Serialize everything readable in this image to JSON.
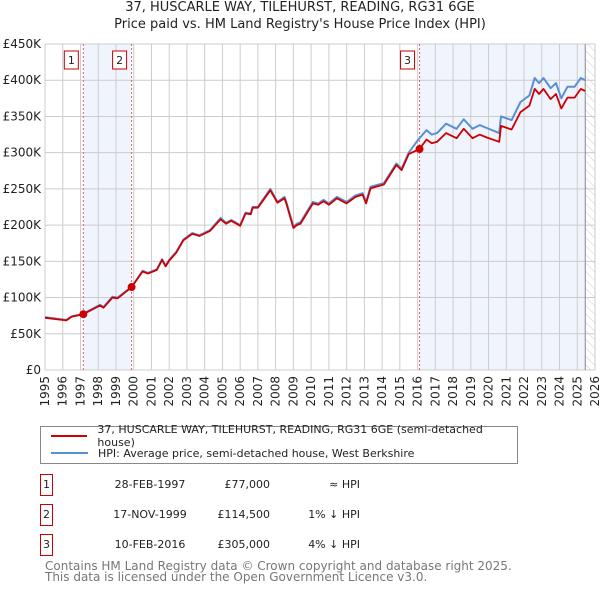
{
  "chart_data": {
    "type": "line",
    "title": "37, HUSCARLE WAY, TILEHURST, READING, RG31 6GE",
    "subtitle": "Price paid vs. HM Land Registry's House Price Index (HPI)",
    "xlim": [
      1995,
      2026
    ],
    "ylim": [
      0,
      450000
    ],
    "y_ticks": [
      0,
      50000,
      100000,
      150000,
      200000,
      250000,
      300000,
      350000,
      400000,
      450000
    ],
    "y_tick_labels": [
      "£0",
      "£50K",
      "£100K",
      "£150K",
      "£200K",
      "£250K",
      "£300K",
      "£350K",
      "£400K",
      "£450K"
    ],
    "x_ticks": [
      "1995",
      "1996",
      "1997",
      "1998",
      "1999",
      "2000",
      "2001",
      "2002",
      "2003",
      "2004",
      "2005",
      "2006",
      "2007",
      "2008",
      "2009",
      "2010",
      "2011",
      "2012",
      "2013",
      "2014",
      "2015",
      "2016",
      "2017",
      "2018",
      "2019",
      "2020",
      "2021",
      "2022",
      "2023",
      "2024",
      "2025",
      "2026"
    ],
    "grid": true,
    "legend_position": "below",
    "series": [
      {
        "name": "HPI: Average price, semi-detached house, West Berkshire",
        "color": "#5b8fd4",
        "x": [
          1995.0,
          1996.2,
          1996.5,
          1997.1,
          1998.1,
          1998.3,
          1998.8,
          1999.1,
          1999.9,
          2000.5,
          2000.8,
          2001.3,
          2001.6,
          2001.8,
          2002.0,
          2002.4,
          2002.8,
          2003.3,
          2003.7,
          2004.3,
          2004.9,
          2005.2,
          2005.5,
          2006.0,
          2006.3,
          2006.6,
          2006.7,
          2007.0,
          2007.7,
          2008.1,
          2008.5,
          2008.6,
          2009.0,
          2009.2,
          2009.4,
          2010.1,
          2010.4,
          2010.7,
          2011.0,
          2011.45,
          2012.0,
          2012.5,
          2012.9,
          2013.1,
          2013.35,
          2014.1,
          2014.8,
          2015.1,
          2015.5,
          2016.0,
          2016.5,
          2016.8,
          2017.1,
          2017.6,
          2018.2,
          2018.6,
          2019.1,
          2019.5,
          2019.9,
          2020.6,
          2020.7,
          2021.3,
          2021.8,
          2022.3,
          2022.6,
          2022.85,
          2023.1,
          2023.5,
          2023.8,
          2024.1,
          2024.45,
          2024.85,
          2025.2,
          2025.45
        ],
        "y": [
          73000,
          69000,
          74000,
          77000,
          90000,
          87000,
          101000,
          100000,
          115000,
          137000,
          134000,
          139000,
          153000,
          144000,
          152000,
          163000,
          180000,
          189000,
          186000,
          193000,
          210000,
          203000,
          207000,
          200000,
          217000,
          216000,
          225000,
          225000,
          250000,
          232000,
          239000,
          232000,
          198000,
          202000,
          204000,
          232000,
          230000,
          235000,
          230000,
          239000,
          232000,
          241000,
          244000,
          232000,
          253000,
          258000,
          285000,
          278000,
          300000,
          317000,
          331000,
          325000,
          327000,
          340000,
          333000,
          346000,
          333000,
          338000,
          334000,
          327000,
          350000,
          345000,
          370000,
          379000,
          403000,
          396000,
          403000,
          389000,
          396000,
          375000,
          391000,
          391000,
          403000,
          400000
        ]
      },
      {
        "name": "37, HUSCARLE WAY, TILEHURST, READING, RG31 6GE (semi-detached house)",
        "color": "#cc0000",
        "x": [
          1995.0,
          1996.2,
          1996.5,
          1997.16,
          1998.1,
          1998.3,
          1998.8,
          1999.1,
          1999.88,
          2000.5,
          2000.8,
          2001.3,
          2001.6,
          2001.8,
          2002.0,
          2002.4,
          2002.8,
          2003.3,
          2003.7,
          2004.3,
          2004.9,
          2005.2,
          2005.5,
          2006.0,
          2006.3,
          2006.6,
          2006.7,
          2007.0,
          2007.7,
          2008.1,
          2008.5,
          2008.6,
          2009.0,
          2009.2,
          2009.4,
          2010.1,
          2010.4,
          2010.7,
          2011.0,
          2011.45,
          2012.0,
          2012.5,
          2012.9,
          2013.1,
          2013.35,
          2014.1,
          2014.8,
          2015.1,
          2015.5,
          2016.11,
          2016.5,
          2016.8,
          2017.1,
          2017.6,
          2018.2,
          2018.6,
          2019.1,
          2019.5,
          2019.9,
          2020.6,
          2020.7,
          2021.3,
          2021.8,
          2022.3,
          2022.6,
          2022.85,
          2023.1,
          2023.5,
          2023.8,
          2024.1,
          2024.45,
          2024.85,
          2025.2,
          2025.45
        ],
        "y": [
          72000,
          68500,
          73500,
          77000,
          89000,
          86000,
          100000,
          99000,
          114500,
          136000,
          133000,
          138000,
          152000,
          143000,
          151000,
          162000,
          179000,
          188000,
          185000,
          192000,
          208000,
          202000,
          206000,
          199000,
          216000,
          215000,
          224000,
          224000,
          248000,
          231000,
          237000,
          230000,
          196000,
          200000,
          202000,
          230000,
          228000,
          233000,
          228000,
          237000,
          230000,
          239000,
          242000,
          230000,
          251000,
          256000,
          283000,
          276000,
          298000,
          305000,
          318000,
          313000,
          315000,
          327000,
          320000,
          333000,
          320000,
          325000,
          321000,
          315000,
          337000,
          332000,
          356000,
          365000,
          388000,
          381000,
          388000,
          374000,
          381000,
          361000,
          376000,
          376000,
          388000,
          385000
        ]
      }
    ],
    "sales": [
      {
        "label": "1",
        "x": 1997.16,
        "y": 77000,
        "date": "28-FEB-1997",
        "price": "£77,000",
        "hpi": "≈ HPI"
      },
      {
        "label": "2",
        "x": 1999.88,
        "y": 114500,
        "date": "17-NOV-1999",
        "price": "£114,500",
        "hpi": "1% ↓ HPI"
      },
      {
        "label": "3",
        "x": 2016.11,
        "y": 305000,
        "date": "10-FEB-2016",
        "price": "£305,000",
        "hpi": "4% ↓ HPI"
      }
    ],
    "shaded_ranges": [
      [
        1997.16,
        1999.88
      ],
      [
        2016.11,
        2025.45
      ]
    ],
    "data_end": 2025.45
  },
  "legend": {
    "property": "37, HUSCARLE WAY, TILEHURST, READING, RG31 6GE (semi-detached house)",
    "hpi": "HPI: Average price, semi-detached house, West Berkshire"
  },
  "footer": {
    "line1": "Contains HM Land Registry data © Crown copyright and database right 2025.",
    "line2": "This data is licensed under the Open Government Licence v3.0."
  }
}
